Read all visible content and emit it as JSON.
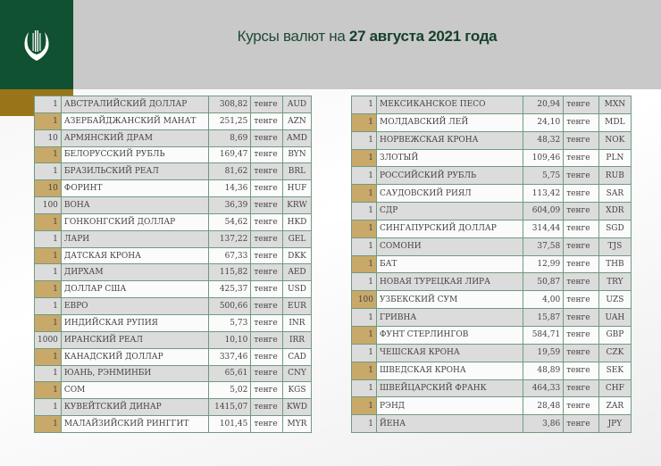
{
  "header": {
    "title_prefix": "Курсы валют на ",
    "title_date": "27 августа 2021 года"
  },
  "colors": {
    "brand_green": "#0f5130",
    "brand_gold": "#9a7418",
    "highlight": "#c8a96a"
  },
  "left_table": [
    [
      "1",
      "АВСТРАЛИЙСКИЙ ДОЛЛАР",
      "308,82",
      "тенге",
      "AUD"
    ],
    [
      "1",
      "АЗЕРБАЙДЖАНСКИЙ МАНАТ",
      "251,25",
      "тенге",
      "AZN"
    ],
    [
      "10",
      "АРМЯНСКИЙ  ДРАМ",
      "8,69",
      "тенге",
      "AMD"
    ],
    [
      "1",
      "БЕЛОРУССКИЙ РУБЛЬ",
      "169,47",
      "тенге",
      "BYN"
    ],
    [
      "1",
      "БРАЗИЛЬСКИЙ РЕАЛ",
      "81,62",
      "тенге",
      "BRL"
    ],
    [
      "10",
      "ФОРИНТ",
      "14,36",
      "тенге",
      "HUF"
    ],
    [
      "100",
      "ВОНА",
      "36,39",
      "тенге",
      "KRW"
    ],
    [
      "1",
      "ГОНКОНГСКИЙ ДОЛЛАР",
      "54,62",
      "тенге",
      "HKD"
    ],
    [
      "1",
      "ЛАРИ",
      "137,22",
      "тенге",
      "GEL"
    ],
    [
      "1",
      "ДАТСКАЯ КРОНА",
      "67,33",
      "тенге",
      "DKK"
    ],
    [
      "1",
      "ДИРХАМ",
      "115,82",
      "тенге",
      "AED"
    ],
    [
      "1",
      "ДОЛЛАР США",
      "425,37",
      "тенге",
      "USD"
    ],
    [
      "1",
      "ЕВРО",
      "500,66",
      "тенге",
      "EUR"
    ],
    [
      "1",
      "ИНДИЙСКАЯ РУПИЯ",
      "5,73",
      "тенге",
      "INR"
    ],
    [
      "1000",
      "ИРАНСКИЙ РЕАЛ",
      "10,10",
      "тенге",
      "IRR"
    ],
    [
      "1",
      "КАНАДСКИЙ ДОЛЛАР",
      "337,46",
      "тенге",
      "CAD"
    ],
    [
      "1",
      "ЮАНЬ, РЭНМИНБИ",
      "65,61",
      "тенге",
      "CNY"
    ],
    [
      "1",
      "СОМ",
      "5,02",
      "тенге",
      "KGS"
    ],
    [
      "1",
      "КУВЕЙТСКИЙ ДИНАР",
      "1415,07",
      "тенге",
      "KWD"
    ],
    [
      "1",
      "МАЛАЙЗИЙСКИЙ РИНГГИТ",
      "101,45",
      "тенге",
      "MYR"
    ]
  ],
  "right_table": [
    [
      "1",
      "МЕКСИКАНСКОЕ ПЕСО",
      "20,94",
      "тенге",
      "MXN"
    ],
    [
      "1",
      "МОЛДАВСКИЙ ЛЕЙ",
      "24,10",
      "тенге",
      "MDL"
    ],
    [
      "1",
      "НОРВЕЖСКАЯ КРОНА",
      "48,32",
      "тенге",
      "NOK"
    ],
    [
      "1",
      "ЗЛОТЫЙ",
      "109,46",
      "тенге",
      "PLN"
    ],
    [
      "1",
      "РОССИЙСКИЙ РУБЛЬ",
      "5,75",
      "тенге",
      "RUB"
    ],
    [
      "1",
      "САУДОВСКИЙ РИЯЛ",
      "113,42",
      "тенге",
      "SAR"
    ],
    [
      "1",
      "СДР",
      "604,09",
      "тенге",
      "XDR"
    ],
    [
      "1",
      "СИНГАПУРСКИЙ ДОЛЛАР",
      "314,44",
      "тенге",
      "SGD"
    ],
    [
      "1",
      "СОМОНИ",
      "37,58",
      "тенге",
      "TJS"
    ],
    [
      "1",
      "БАТ",
      "12,99",
      "тенге",
      "THB"
    ],
    [
      "1",
      "НОВАЯ ТУРЕЦКАЯ ЛИРА",
      "50,87",
      "тенге",
      "TRY"
    ],
    [
      "100",
      "УЗБЕКСКИЙ СУМ",
      "4,00",
      "тенге",
      "UZS"
    ],
    [
      "1",
      "ГРИВНА",
      "15,87",
      "тенге",
      "UAH"
    ],
    [
      "1",
      "ФУНТ СТЕРЛИНГОВ",
      "584,71",
      "тенге",
      "GBP"
    ],
    [
      "1",
      "ЧЕШСКАЯ КРОНА",
      "19,59",
      "тенге",
      "CZK"
    ],
    [
      "1",
      "ШВЕДСКАЯ КРОНА",
      "48,89",
      "тенге",
      "SEK"
    ],
    [
      "1",
      "ШВЕЙЦАРСКИЙ ФРАНК",
      "464,33",
      "тенге",
      "CHF"
    ],
    [
      "1",
      "РЭНД",
      "28,48",
      "тенге",
      "ZAR"
    ],
    [
      "1",
      "ЙЕНА",
      "3,86",
      "тенге",
      "JPY"
    ]
  ]
}
